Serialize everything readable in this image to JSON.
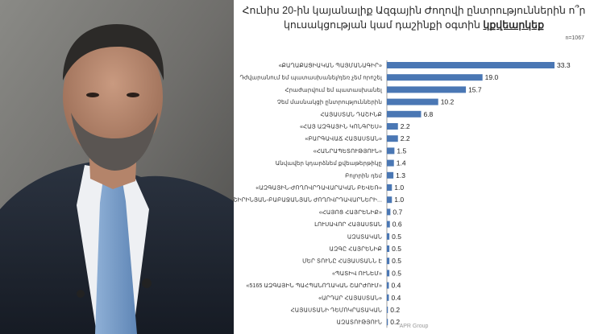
{
  "photo": {
    "description_icon": "person-portrait"
  },
  "title": {
    "line1": "Հունիս 20-ին կայանալիք Ազգային Ժողովի ընտրություններին ո՞ր",
    "line2_prefix": "կուսակցության կամ դաշինքի օգտին ",
    "line2_emph": "կքվեարկեք"
  },
  "n_label": "n=1067",
  "source": "APR Group",
  "colors": {
    "bar": "#4a77b4",
    "baseline": "#888888"
  },
  "chart_data": {
    "type": "bar",
    "orientation": "horizontal",
    "categories": [
      "«ՔԱՂԱՔԱՑԻԱԿԱՆ ՊԱՅՄԱՆԱԳԻՐ»",
      "Դժվարանում եմ պատասխանել/դեռ չեմ որոշել",
      "Հրաժարվում եմ պատասխանել",
      "Չեմ մասնակցի ընտրություններին",
      "ՀԱՅԱՍՏԱՆ ԴԱՇԻՆՔ",
      "«ՀԱՅ ԱԶԳԱՅԻՆ ԿՈՆԳՐԵՍ»",
      "«ԲԱՐԳԱՎԱՃ ՀԱՅԱՍՏԱՆ»",
      "«ՀԱՆՐԱՊԵՏՈՒԹՅՈՒՆ»",
      "Անվավեր կդարձնեմ քվեաթերթիկը",
      "Բոլորին դեմ",
      "«ԱԶԳԱՅԻՆ-ԺՈՂՈՎՐԴԱՎԱՐԱԿԱՆ ԲԵՎԵՌ»",
      "«ՇԻՐԻՆՅԱՆ-ԲԱԲԱՋԱՆՅԱՆ ԺՈՂՈՎՐԴԱՎԱՐՆԵՐԻ...",
      "«ՀԱՅՈՑ ՀԱՅՐԵՆԻՔ»",
      "ԼՈՒՍԱՎՈՐ ՀԱՅԱՍՏԱՆ",
      "ԱԶԱՏԱԿԱՆ",
      "ԱԶԳԸ ՀԱՅՐԵՆԻՔ",
      "ՄԵՐ ՏՈՒՆԸ ՀԱՅԱՍՏԱՆՆ Է",
      "«ՊԱՏԻՎ ՈՒՆԵՄ»",
      "«5165 ԱԶԳԱՅԻՆ ՊԱՀՊԱՆՈՂԱԿԱՆ ՇԱՐԺՈՒՄ»",
      "«ԱՐԴԱՐ ՀԱՅԱՍՏԱՆ»",
      "ՀԱՅԱՍՏԱՆԻ ԴԵՄՈԿՐԱՏԱԿԱՆ",
      "ԱԶԱՏՈՒԹՅՈՒՆ"
    ],
    "values": [
      33.3,
      19.0,
      15.7,
      10.2,
      6.8,
      2.2,
      2.2,
      1.5,
      1.4,
      1.3,
      1.0,
      1.0,
      0.7,
      0.6,
      0.5,
      0.5,
      0.5,
      0.5,
      0.4,
      0.4,
      0.2,
      0.2
    ],
    "value_labels": [
      "33.3",
      "19.0",
      "15.7",
      "10.2",
      "6.8",
      "2.2",
      "2.2",
      "1.5",
      "1.4",
      "1.3",
      "1.0",
      "1.0",
      "0.7",
      "0.6",
      "0.5",
      "0.5",
      "0.5",
      "0.5",
      "0.4",
      "0.4",
      "0.2",
      "0.2"
    ],
    "xlim": [
      0,
      33.3
    ],
    "grid": false,
    "legend": "none"
  }
}
